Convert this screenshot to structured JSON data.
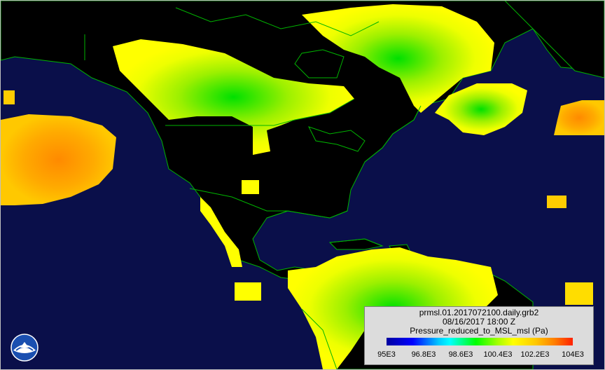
{
  "legend": {
    "file_name": "prmsl.01.2017072100.daily.grb2",
    "valid_time": "08/16/2017 18:00 Z",
    "variable": "Pressure_reduced_to_MSL_msl (Pa)",
    "ticks": [
      "95E3",
      "96.8E3",
      "98.6E3",
      "100.4E3",
      "102.2E3",
      "104E3"
    ]
  },
  "colors": {
    "ocean": "#0a0f4a",
    "land": "#000000",
    "coastline": "#00b400",
    "scale_low": "#0000a0",
    "scale_high": "#ff2000"
  },
  "icons": {
    "logo": "noaa-logo-icon"
  }
}
